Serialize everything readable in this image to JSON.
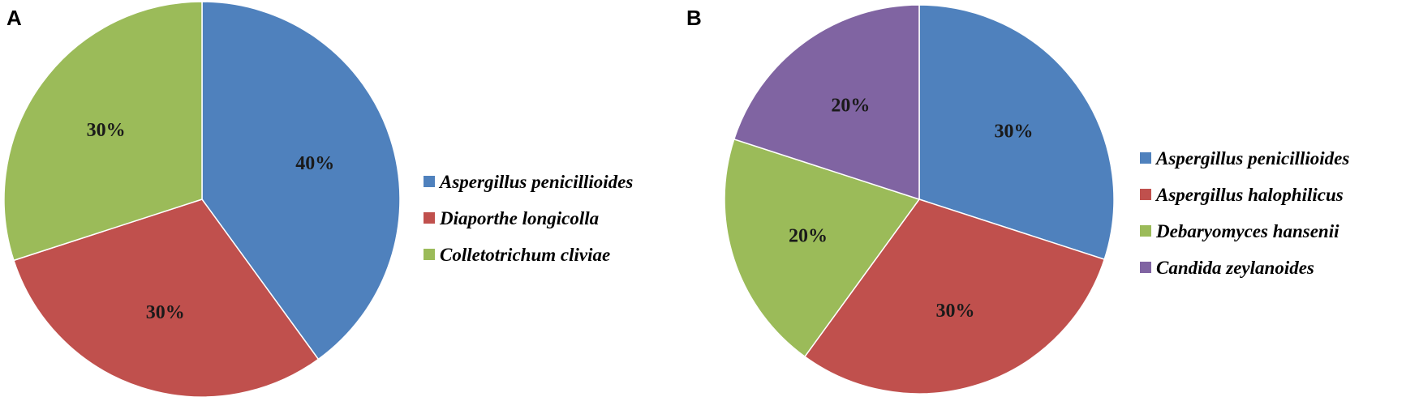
{
  "figure": {
    "panels": [
      "A",
      "B"
    ]
  },
  "chart_data": [
    {
      "type": "pie",
      "panel": "A",
      "slices": [
        {
          "label": "Aspergillus penicillioides",
          "value": 40,
          "display": "40%",
          "color": "#4f81bd"
        },
        {
          "label": "Diaporthe longicolla",
          "value": 30,
          "display": "30%",
          "color": "#c0504d"
        },
        {
          "label": "Colletotrichum cliviae",
          "value": 30,
          "display": "30%",
          "color": "#9bbb59"
        }
      ],
      "start": "12 o'clock",
      "direction": "clockwise",
      "legend_position": "right"
    },
    {
      "type": "pie",
      "panel": "B",
      "slices": [
        {
          "label": "Aspergillus penicillioides",
          "value": 30,
          "display": "30%",
          "color": "#4f81bd"
        },
        {
          "label": "Aspergillus halophilicus",
          "value": 30,
          "display": "30%",
          "color": "#c0504d"
        },
        {
          "label": "Debaryomyces hansenii",
          "value": 20,
          "display": "20%",
          "color": "#9bbb59"
        },
        {
          "label": "Candida zeylanoides",
          "value": 20,
          "display": "20%",
          "color": "#8064a2"
        }
      ],
      "start": "12 o'clock",
      "direction": "clockwise",
      "legend_position": "right"
    }
  ]
}
